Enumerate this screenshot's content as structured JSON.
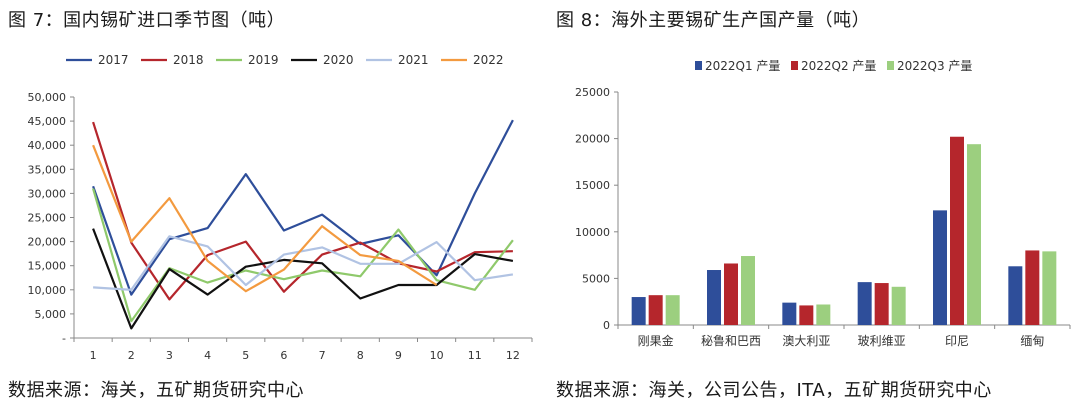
{
  "left": {
    "title": "图 7：国内锡矿进口季节图（吨）",
    "source": "数据来源：海关，五矿期货研究中心"
  },
  "right": {
    "title": "图 8：海外主要锡矿生产国产量（吨）",
    "source": "数据来源：海关，公司公告，ITA，五矿期货研究中心"
  },
  "chart_data": [
    {
      "type": "line",
      "title": "图 7：国内锡矿进口季节图（吨）",
      "xlabel": "",
      "ylabel": "",
      "x": [
        1,
        2,
        3,
        4,
        5,
        6,
        7,
        8,
        9,
        10,
        11,
        12
      ],
      "ylim": [
        0,
        50000
      ],
      "yticks": [
        "-",
        "5,000",
        "10,000",
        "15,000",
        "20,000",
        "25,000",
        "30,000",
        "35,000",
        "40,000",
        "45,000",
        "50,000"
      ],
      "legend": "top",
      "grid": false,
      "series": [
        {
          "name": "2017",
          "color": "#2e4e9a",
          "values": [
            31500,
            9000,
            20500,
            22800,
            34000,
            22300,
            25600,
            19500,
            21300,
            13000,
            30000,
            45200
          ]
        },
        {
          "name": "2018",
          "color": "#b5262c",
          "values": [
            44800,
            19800,
            8000,
            17200,
            20000,
            9600,
            17300,
            19800,
            15500,
            13800,
            17800,
            18000
          ]
        },
        {
          "name": "2019",
          "color": "#8fc96b",
          "values": [
            31000,
            3500,
            14500,
            11500,
            14000,
            12200,
            14000,
            12800,
            22500,
            12000,
            10000,
            20300
          ]
        },
        {
          "name": "2020",
          "color": "#111111",
          "values": [
            22700,
            2000,
            14300,
            9000,
            14800,
            16200,
            15500,
            8200,
            11000,
            11000,
            17400,
            16000
          ]
        },
        {
          "name": "2021",
          "color": "#b1c3e3",
          "values": [
            10500,
            10000,
            21100,
            19000,
            11000,
            17300,
            18800,
            15400,
            15400,
            19900,
            12000,
            13200
          ]
        },
        {
          "name": "2022",
          "color": "#f39a3f",
          "values": [
            40000,
            20000,
            29000,
            16000,
            9700,
            14200,
            23200,
            17200,
            16000,
            11000,
            null,
            null
          ]
        }
      ]
    },
    {
      "type": "bar",
      "title": "图 8：海外主要锡矿生产国产量（吨）",
      "xlabel": "",
      "ylabel": "",
      "categories": [
        "刚果金",
        "秘鲁和巴西",
        "澳大利亚",
        "玻利维亚",
        "印尼",
        "缅甸"
      ],
      "ylim": [
        0,
        25000
      ],
      "yticks": [
        "0",
        "5000",
        "10000",
        "15000",
        "20000",
        "25000"
      ],
      "legend": "top",
      "grid": false,
      "series": [
        {
          "name": "2022Q1 产量",
          "color": "#2e4e9a",
          "values": [
            3000,
            5900,
            2400,
            4600,
            12300,
            6300
          ]
        },
        {
          "name": "2022Q2 产量",
          "color": "#b5262c",
          "values": [
            3200,
            6600,
            2100,
            4500,
            20200,
            8000
          ]
        },
        {
          "name": "2022Q3 产量",
          "color": "#9ccf7f",
          "values": [
            3200,
            7400,
            2200,
            4100,
            19400,
            7900
          ]
        }
      ]
    }
  ]
}
